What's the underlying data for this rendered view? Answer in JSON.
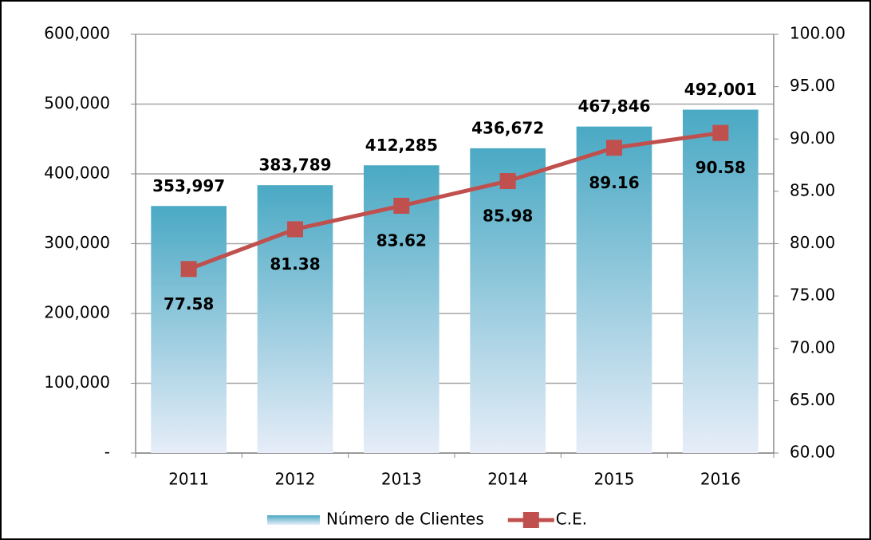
{
  "chart_data": {
    "type": "bar",
    "categories": [
      "2011",
      "2012",
      "2013",
      "2014",
      "2015",
      "2016"
    ],
    "series": [
      {
        "name": "Número de Clientes",
        "type": "bar",
        "color": "#4bacc6",
        "values": [
          353997,
          383789,
          412285,
          436672,
          467846,
          492001
        ],
        "value_labels": [
          "353,997",
          "383,789",
          "412,285",
          "436,672",
          "467,846",
          "492,001"
        ]
      },
      {
        "name": "C.E.",
        "type": "line",
        "axis": "y2",
        "color": "#c0504d",
        "values": [
          77.58,
          81.38,
          83.62,
          85.98,
          89.16,
          90.58
        ]
      }
    ],
    "ylim": [
      0,
      600000
    ],
    "yticks": [
      {
        "value": 0,
        "label": "-"
      },
      {
        "value": 100000,
        "label": "100,000"
      },
      {
        "value": 200000,
        "label": "200,000"
      },
      {
        "value": 300000,
        "label": "300,000"
      },
      {
        "value": 400000,
        "label": "400,000"
      },
      {
        "value": 500000,
        "label": "500,000"
      },
      {
        "value": 600000,
        "label": "600,000"
      }
    ],
    "y2lim": [
      60,
      100
    ],
    "y2ticks": [
      {
        "value": 60,
        "label": "60.00"
      },
      {
        "value": 65,
        "label": "65.00"
      },
      {
        "value": 70,
        "label": "70.00"
      },
      {
        "value": 75,
        "label": "75.00"
      },
      {
        "value": 80,
        "label": "80.00"
      },
      {
        "value": 85,
        "label": "85.00"
      },
      {
        "value": 90,
        "label": "90.00"
      },
      {
        "value": 95,
        "label": "95.00"
      },
      {
        "value": 100,
        "label": "100.00"
      }
    ],
    "grid": true
  }
}
